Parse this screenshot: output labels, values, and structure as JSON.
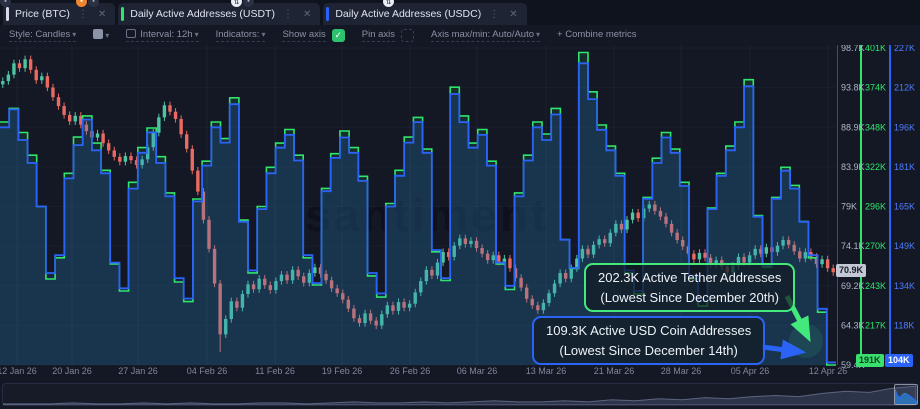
{
  "tabs": [
    {
      "label": "Price (BTC)",
      "color": "#d7dce8"
    },
    {
      "label": "Daily Active Addresses (USDT)",
      "color": "#2fe56c"
    },
    {
      "label": "Daily Active Addresses (USDC)",
      "color": "#2b63f6"
    }
  ],
  "toolbar": {
    "style_label": "Style: Candles",
    "interval_label": "Interval: 12h",
    "indicators_label": "Indicators:",
    "show_axis_label": "Show axis",
    "pin_axis_label": "Pin axis",
    "axis_maxmin_label": "Axis max/min: Auto/Auto",
    "combine_label": "+ Combine metrics"
  },
  "watermark": "santiment",
  "axes": {
    "price": {
      "ticks": [
        "98.7K",
        "93.8K",
        "88.9K",
        "83.9K",
        "79K",
        "74.1K",
        "69.2K",
        "64.3K",
        "59.4K"
      ],
      "badge": "70.9K",
      "color": "#aeb6c8"
    },
    "usdt": {
      "ticks": [
        "401K",
        "374K",
        "348K",
        "322K",
        "296K",
        "270K",
        "243K",
        "217K"
      ],
      "badge": "191K",
      "color": "#2fe56c"
    },
    "usdc": {
      "ticks": [
        "227K",
        "212K",
        "196K",
        "181K",
        "165K",
        "149K",
        "134K",
        "118K"
      ],
      "badge": "104K",
      "color": "#4f7cff"
    }
  },
  "x_axis": {
    "labels": [
      "12 Jan 26",
      "20 Jan 26",
      "27 Jan 26",
      "04 Feb 26",
      "11 Feb 26",
      "19 Feb 26",
      "26 Feb 26",
      "06 Mar 26",
      "13 Mar 26",
      "21 Mar 26",
      "28 Mar 26",
      "05 Apr 26",
      "12 Apr 26"
    ]
  },
  "annotations": [
    {
      "line1": "202.3K Active Tether Addresses",
      "line2": "(Lowest Since December 20th)",
      "color": "#43e97b"
    },
    {
      "line1": "109.3K Active USD Coin Addresses",
      "line2": "(Lowest Since December 14th)",
      "color": "#2b63f6"
    }
  ],
  "chart_data": {
    "type": "mixed",
    "x_range": [
      "12 Jan 26",
      "12 Apr 26"
    ],
    "series": [
      {
        "name": "Price (BTC)",
        "type": "candlestick",
        "unit": "USD thousands",
        "interval": "12h",
        "axis_range": [
          59.4,
          98.7
        ],
        "latest_badge": 70.9,
        "first_open": 94.2,
        "wick": 0.45,
        "low_override": {
          "index": 39,
          "low": 61.0
        },
        "note": "approx closes read from chart; open = previous close",
        "closes": [
          94.6,
          95.4,
          96.8,
          96.2,
          97.3,
          96.0,
          94.7,
          95.2,
          93.8,
          92.6,
          91.5,
          90.4,
          89.6,
          90.3,
          89.2,
          88.4,
          87.6,
          88.1,
          86.9,
          86.0,
          85.2,
          84.6,
          85.3,
          84.8,
          84.2,
          84.9,
          86.4,
          88.2,
          90.1,
          91.6,
          90.8,
          89.9,
          88.0,
          86.2,
          83.5,
          80.9,
          77.4,
          73.8,
          69.5,
          63.2,
          65.1,
          67.3,
          66.5,
          68.2,
          69.4,
          68.8,
          70.1,
          69.3,
          68.7,
          69.8,
          70.6,
          69.9,
          71.2,
          70.4,
          69.6,
          70.8,
          71.5,
          70.7,
          69.9,
          68.9,
          68.3,
          67.5,
          66.4,
          65.2,
          64.6,
          65.8,
          64.9,
          64.3,
          65.7,
          66.8,
          66.1,
          67.2,
          66.5,
          67.0,
          68.4,
          69.8,
          71.2,
          70.5,
          72.1,
          73.4,
          72.8,
          74.2,
          75.1,
          74.4,
          74.8,
          73.9,
          73.2,
          72.4,
          73.0,
          72.2,
          72.6,
          71.4,
          70.2,
          69.0,
          67.6,
          66.8,
          66.2,
          67.1,
          68.3,
          69.5,
          70.8,
          70.1,
          71.4,
          72.6,
          73.8,
          73.1,
          74.3,
          75.0,
          74.5,
          75.8,
          76.9,
          76.2,
          77.4,
          78.3,
          77.6,
          78.8,
          79.3,
          78.5,
          77.8,
          76.9,
          75.8,
          74.9,
          74.1,
          73.2,
          72.5,
          73.3,
          72.7,
          71.8,
          72.4,
          71.6,
          70.9,
          71.7,
          72.8,
          72.1,
          73.0,
          73.8,
          73.2,
          74.0,
          73.4,
          74.2,
          74.9,
          74.3,
          73.5,
          72.6,
          73.4,
          72.8,
          71.9,
          72.5,
          71.4,
          70.9
        ]
      },
      {
        "name": "Daily Active Addresses (USDT)",
        "type": "step-area",
        "unit": "addresses thousands",
        "axis_range": [
          191,
          401
        ],
        "latest": 191,
        "annotated_low": 202.3,
        "color": "#2fe56c",
        "daily_values": [
          352,
          361,
          345,
          330,
          296,
          248,
          262,
          318,
          342,
          356,
          338,
          320,
          258,
          240,
          312,
          335,
          348,
          329,
          305,
          246,
          233,
          301,
          326,
          352,
          341,
          368,
          287,
          252,
          296,
          322,
          338,
          347,
          330,
          262,
          244,
          308,
          331,
          346,
          335,
          316,
          250,
          236,
          298,
          320,
          342,
          355,
          334,
          266,
          247,
          375,
          356,
          338,
          347,
          326,
          258,
          241,
          305,
          330,
          352,
          344,
          361,
          274,
          255,
          398,
          372,
          350,
          336,
          318,
          252,
          238,
          302,
          328,
          345,
          334,
          312,
          248,
          230,
          295,
          318,
          336,
          352,
          380,
          290,
          256,
          302,
          322,
          310,
          286,
          262,
          226,
          191
        ]
      },
      {
        "name": "Daily Active Addresses (USDC)",
        "type": "step-area",
        "unit": "addresses thousands",
        "axis_range": [
          103,
          227
        ],
        "latest": 104,
        "annotated_low": 109.3,
        "color": "#2b63f6",
        "daily_values": [
          196,
          203,
          191,
          182,
          165,
          139,
          146,
          176,
          189,
          199,
          187,
          178,
          143,
          133,
          172,
          186,
          194,
          182,
          169,
          137,
          129,
          167,
          181,
          196,
          190,
          205,
          159,
          140,
          164,
          178,
          188,
          193,
          183,
          146,
          135,
          171,
          184,
          192,
          186,
          175,
          139,
          131,
          165,
          177,
          190,
          198,
          186,
          148,
          137,
          209,
          198,
          188,
          193,
          181,
          143,
          134,
          169,
          183,
          196,
          191,
          201,
          152,
          141,
          221,
          207,
          195,
          187,
          177,
          140,
          132,
          168,
          182,
          192,
          186,
          173,
          138,
          128,
          164,
          177,
          187,
          196,
          212,
          161,
          142,
          168,
          179,
          172,
          159,
          146,
          125,
          104
        ]
      }
    ],
    "navigator": {
      "sparkline": [
        1,
        1,
        1,
        2,
        1,
        1,
        2,
        1,
        2,
        1,
        1,
        2,
        2,
        1,
        2,
        3,
        2,
        2,
        3,
        2,
        3,
        4,
        3,
        3,
        4,
        3,
        5,
        4,
        6,
        5,
        7,
        6,
        8,
        9,
        8,
        11,
        13,
        12,
        16,
        18
      ]
    }
  }
}
